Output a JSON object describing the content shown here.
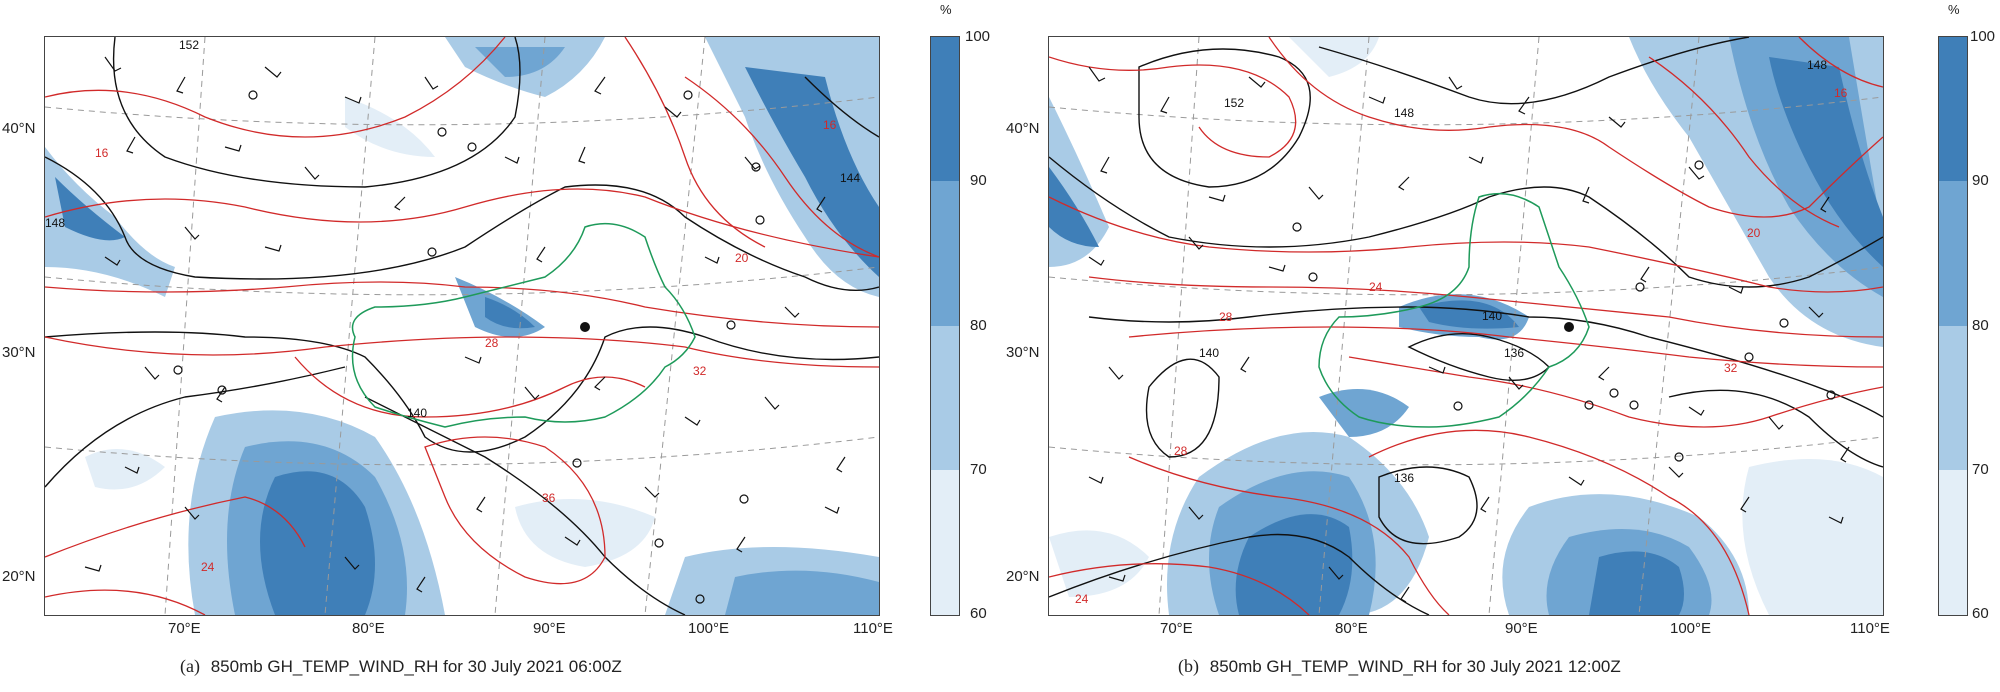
{
  "panels": [
    {
      "letter": "(a)",
      "caption": "850mb GH_TEMP_WIND_RH for 30 July 2021 06:00Z",
      "lon_labels": [
        "70°E",
        "80°E",
        "90°E",
        "100°E",
        "110°E"
      ],
      "lat_labels": [
        "40°N",
        "30°N",
        "20°N"
      ],
      "contour_labels": [
        "152",
        "148",
        "144",
        "140",
        "16",
        "16",
        "20",
        "24",
        "28",
        "32",
        "36"
      ],
      "station": "●"
    },
    {
      "letter": "(b)",
      "caption": "850mb GH_TEMP_WIND_RH for 30 July 2021 12:00Z",
      "lon_labels": [
        "70°E",
        "80°E",
        "90°E",
        "100°E",
        "110°E"
      ],
      "lat_labels": [
        "40°N",
        "30°N",
        "20°N"
      ],
      "contour_labels": [
        "152",
        "148",
        "148",
        "140",
        "140",
        "136",
        "136",
        "16",
        "20",
        "24",
        "28",
        "28",
        "32",
        "24"
      ],
      "station": "●"
    }
  ],
  "colorbar": {
    "unit": "%",
    "ticks": [
      "100",
      "90",
      "80",
      "70",
      "60"
    ],
    "colors": [
      "#3f7fb8",
      "#6fa5d2",
      "#a9cbe6",
      "#e3eef7"
    ]
  },
  "colors": {
    "geopotential_contour": "#111111",
    "temperature_contour": "#d12a2a",
    "boundary": "#1e9a5a",
    "graticule": "#9a9a9a",
    "rh_90": "#3f7fb8",
    "rh_80": "#6fa5d2",
    "rh_70": "#a9cbe6",
    "rh_60": "#e3eef7"
  }
}
